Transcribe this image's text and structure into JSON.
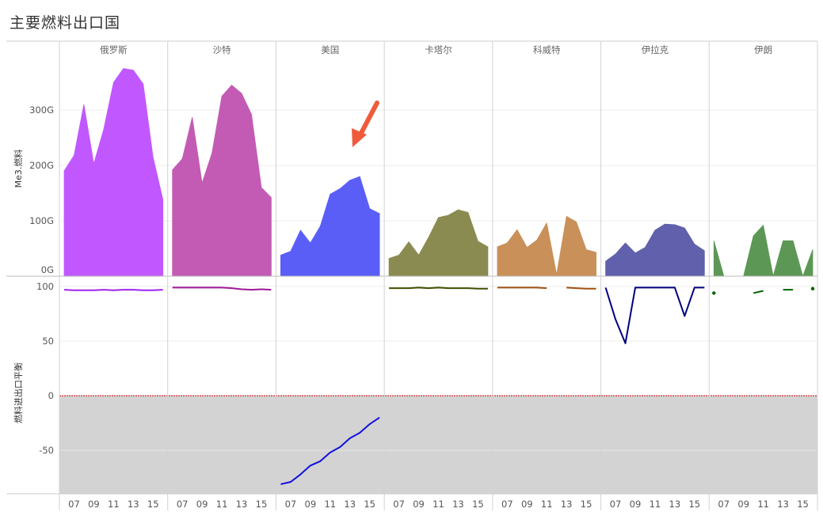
{
  "title": "主要燃料出口国",
  "chart_data": {
    "type": "area",
    "title": "主要燃料出口国",
    "countries": [
      "俄罗斯",
      "沙特",
      "美国",
      "卡塔尔",
      "科威特",
      "伊拉克",
      "伊朗"
    ],
    "colors": [
      "#c158ff",
      "#c35bb4",
      "#5b5ef6",
      "#8a8b50",
      "#c9905a",
      "#6160ac",
      "#5c9756"
    ],
    "line_colors": [
      "#a020f0",
      "#a01898",
      "#1010e0",
      "#3c5000",
      "#a05010",
      "#000080",
      "#006400"
    ],
    "x": [
      2006,
      2007,
      2008,
      2009,
      2010,
      2011,
      2012,
      2013,
      2014,
      2015,
      2016
    ],
    "x_tick_labels": [
      "07",
      "09",
      "11",
      "13",
      "15"
    ],
    "x_tick_values": [
      2007,
      2009,
      2011,
      2013,
      2015
    ],
    "top_panel": {
      "ylabel": "Me3.燃料",
      "ylim": [
        0,
        395
      ],
      "y_tick_values": [
        0,
        100,
        200,
        300
      ],
      "y_tick_labels": [
        "0G",
        "100G",
        "200G",
        "300G"
      ],
      "series": [
        {
          "name": "俄罗斯",
          "values": [
            190,
            218,
            310,
            203,
            265,
            350,
            375,
            372,
            347,
            215,
            138
          ]
        },
        {
          "name": "沙特",
          "values": [
            192,
            212,
            287,
            168,
            222,
            325,
            345,
            330,
            292,
            160,
            142
          ]
        },
        {
          "name": "美国",
          "values": [
            38,
            45,
            83,
            60,
            90,
            148,
            158,
            173,
            180,
            122,
            113
          ]
        },
        {
          "name": "卡塔尔",
          "values": [
            32,
            38,
            62,
            38,
            70,
            106,
            110,
            120,
            115,
            63,
            53
          ]
        },
        {
          "name": "科威特",
          "values": [
            53,
            60,
            84,
            52,
            65,
            96,
            3,
            108,
            98,
            48,
            43
          ]
        },
        {
          "name": "伊拉克",
          "values": [
            27,
            40,
            60,
            42,
            52,
            83,
            94,
            93,
            87,
            58,
            46
          ]
        },
        {
          "name": "伊朗",
          "values": [
            64,
            0,
            0,
            0,
            73,
            92,
            0,
            64,
            64,
            0,
            48
          ]
        }
      ]
    },
    "bottom_panel": {
      "ylabel": "燃料进出口平衡",
      "ylim": [
        -90,
        103
      ],
      "y_tick_values": [
        100,
        50,
        0,
        -50
      ],
      "y_tick_labels": [
        "100",
        "50",
        "0",
        "-50"
      ],
      "series": [
        {
          "name": "俄罗斯",
          "values": [
            97,
            96.5,
            96.5,
            96.5,
            97,
            96.5,
            97,
            97,
            96.5,
            96.5,
            97
          ]
        },
        {
          "name": "沙特",
          "values": [
            99,
            99,
            99,
            99,
            99,
            99,
            98.5,
            97.5,
            97,
            97.5,
            97
          ]
        },
        {
          "name": "美国",
          "values": [
            -81,
            -79,
            -72,
            -64,
            -60,
            -52,
            -47,
            -39,
            -34,
            -26,
            -20
          ]
        },
        {
          "name": "卡塔尔",
          "values": [
            98.5,
            98.5,
            98.5,
            99,
            98.5,
            99,
            98.5,
            98.5,
            98.5,
            98,
            98
          ]
        },
        {
          "name": "科威特",
          "values": [
            99,
            99,
            99,
            99,
            99,
            98.5,
            null,
            99,
            98.5,
            98,
            98
          ]
        },
        {
          "name": "伊拉克",
          "values": [
            99,
            70,
            48,
            99,
            99,
            99,
            99,
            99,
            73,
            99,
            99
          ]
        },
        {
          "name": "伊朗",
          "values": [
            94,
            null,
            null,
            null,
            94,
            96,
            null,
            97,
            97,
            null,
            98
          ]
        }
      ]
    },
    "reference_line": {
      "value": 0,
      "color": "#cc0000"
    },
    "negative_band_color": "#d3d3d3",
    "annotation": {
      "type": "arrow",
      "color": "#f05a3c",
      "panel": "美国"
    }
  }
}
